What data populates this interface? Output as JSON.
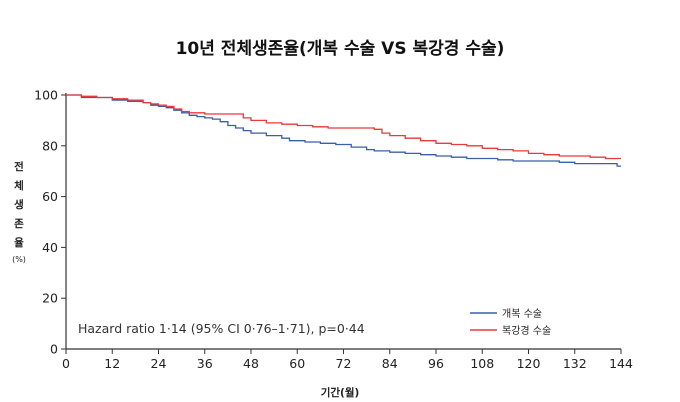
{
  "chart_data": {
    "type": "line",
    "title": "10년 전체생존율(개복 수술 VS 복강경 수술)",
    "ylabel_chars": [
      "전",
      "체",
      "생",
      "존",
      "율"
    ],
    "ylabel_unit": "(%)",
    "xlabel": "기간(월)",
    "xlim": [
      0,
      144
    ],
    "ylim": [
      0,
      100
    ],
    "xticks": [
      0,
      12,
      24,
      36,
      48,
      60,
      72,
      84,
      96,
      108,
      120,
      132,
      144
    ],
    "yticks": [
      0,
      20,
      40,
      60,
      80,
      100
    ],
    "annotation": "Hazard ratio 1·14 (95% CI 0·76–1·71), p=0·44",
    "legend_position": "bottom-right",
    "series": [
      {
        "name": "개복 수술",
        "color": "#3a5fa6",
        "x": [
          0,
          4,
          8,
          12,
          16,
          20,
          22,
          24,
          26,
          28,
          30,
          32,
          34,
          36,
          38,
          40,
          42,
          44,
          46,
          48,
          52,
          56,
          58,
          62,
          66,
          70,
          74,
          78,
          80,
          84,
          88,
          92,
          96,
          100,
          104,
          108,
          112,
          116,
          120,
          124,
          128,
          132,
          136,
          140,
          143,
          144
        ],
        "y": [
          100,
          99,
          99,
          98,
          97.5,
          97,
          96,
          95.5,
          95,
          94,
          93,
          92,
          91.5,
          91,
          90.5,
          89.5,
          88,
          87,
          86,
          85,
          84,
          83,
          82,
          81.5,
          81,
          80.5,
          79.5,
          78.5,
          78,
          77.5,
          77,
          76.5,
          76,
          75.5,
          75,
          75,
          74.5,
          74,
          74,
          74,
          73.5,
          73,
          73,
          73,
          72,
          72
        ]
      },
      {
        "name": "복강경 수술",
        "color": "#e83a3a",
        "x": [
          0,
          4,
          8,
          12,
          16,
          20,
          22,
          24,
          26,
          28,
          30,
          32,
          36,
          40,
          44,
          46,
          48,
          52,
          56,
          60,
          64,
          68,
          72,
          76,
          80,
          82,
          84,
          88,
          92,
          96,
          100,
          104,
          108,
          112,
          116,
          120,
          124,
          128,
          132,
          136,
          140,
          144
        ],
        "y": [
          100,
          99.5,
          99,
          98.5,
          98,
          97,
          96.5,
          96,
          95.5,
          94.5,
          93.5,
          93,
          92.5,
          92.5,
          92.5,
          91,
          90,
          89,
          88.5,
          88,
          87.5,
          87,
          87,
          87,
          86.5,
          85,
          84,
          83,
          82,
          81,
          80.5,
          80,
          79,
          78.5,
          78,
          77,
          76.5,
          76,
          76,
          75.5,
          75,
          75
        ]
      }
    ]
  }
}
